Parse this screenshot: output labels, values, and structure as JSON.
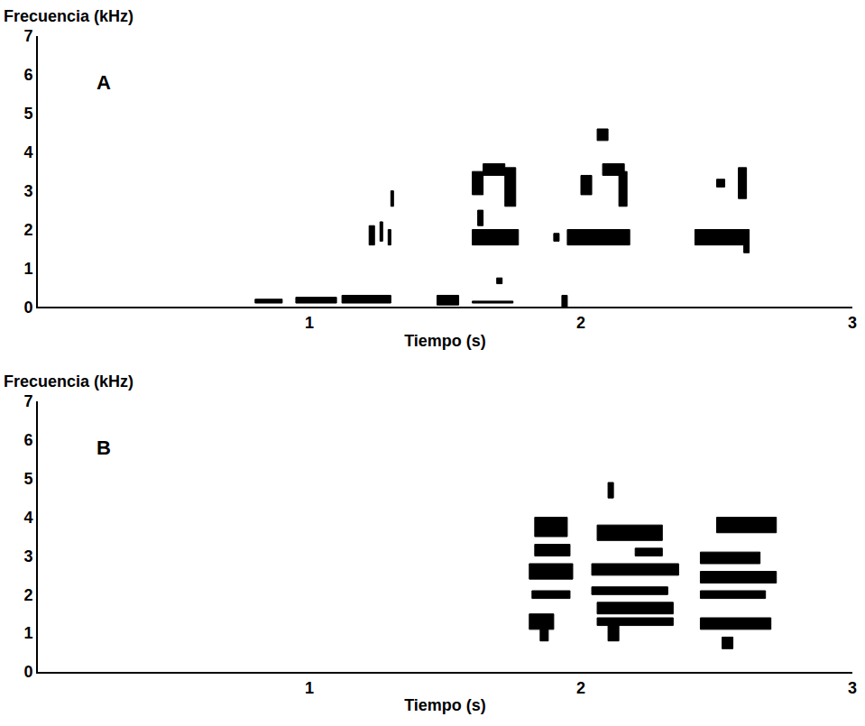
{
  "chart_data": [
    {
      "type": "spectrogram",
      "panel": "A",
      "xlabel": "Tiempo (s)",
      "ylabel": "Frecuencia (kHz)",
      "xlim": [
        0,
        3
      ],
      "xticks": [
        1,
        2,
        3
      ],
      "ylim": [
        0,
        7
      ],
      "yticks": [
        0,
        1,
        2,
        3,
        4,
        5,
        6,
        7
      ],
      "grid": false,
      "color": "#000000",
      "marks": [
        {
          "t": [
            0.8,
            0.9
          ],
          "f": [
            0.1,
            0.2
          ]
        },
        {
          "t": [
            0.95,
            1.1
          ],
          "f": [
            0.1,
            0.25
          ]
        },
        {
          "t": [
            1.12,
            1.3
          ],
          "f": [
            0.1,
            0.3
          ]
        },
        {
          "t": [
            1.47,
            1.55
          ],
          "f": [
            0.05,
            0.3
          ]
        },
        {
          "t": [
            1.6,
            1.75
          ],
          "f": [
            0.1,
            0.15
          ]
        },
        {
          "t": [
            1.93,
            1.95
          ],
          "f": [
            0.0,
            0.3
          ]
        },
        {
          "t": [
            1.22,
            1.24
          ],
          "f": [
            1.6,
            2.1
          ]
        },
        {
          "t": [
            1.26,
            1.27
          ],
          "f": [
            1.7,
            2.2
          ]
        },
        {
          "t": [
            1.29,
            1.3
          ],
          "f": [
            1.6,
            2.0
          ]
        },
        {
          "t": [
            1.3,
            1.31
          ],
          "f": [
            2.6,
            3.0
          ]
        },
        {
          "t": [
            1.69,
            1.71
          ],
          "f": [
            0.6,
            0.75
          ]
        },
        {
          "t": [
            1.6,
            1.77
          ],
          "f": [
            1.6,
            2.0
          ]
        },
        {
          "t": [
            1.6,
            1.64
          ],
          "f": [
            2.9,
            3.5
          ]
        },
        {
          "t": [
            1.64,
            1.72
          ],
          "f": [
            3.4,
            3.7
          ]
        },
        {
          "t": [
            1.72,
            1.76
          ],
          "f": [
            2.6,
            3.6
          ]
        },
        {
          "t": [
            1.62,
            1.64
          ],
          "f": [
            2.1,
            2.5
          ]
        },
        {
          "t": [
            1.9,
            1.92
          ],
          "f": [
            1.7,
            1.9
          ]
        },
        {
          "t": [
            1.95,
            2.18
          ],
          "f": [
            1.6,
            2.0
          ]
        },
        {
          "t": [
            2.0,
            2.04
          ],
          "f": [
            2.9,
            3.4
          ]
        },
        {
          "t": [
            2.08,
            2.16
          ],
          "f": [
            3.4,
            3.7
          ]
        },
        {
          "t": [
            2.14,
            2.17
          ],
          "f": [
            2.6,
            3.5
          ]
        },
        {
          "t": [
            2.06,
            2.1
          ],
          "f": [
            4.3,
            4.6
          ]
        },
        {
          "t": [
            2.42,
            2.62
          ],
          "f": [
            1.6,
            2.0
          ]
        },
        {
          "t": [
            2.58,
            2.61
          ],
          "f": [
            2.8,
            3.6
          ]
        },
        {
          "t": [
            2.5,
            2.53
          ],
          "f": [
            3.1,
            3.3
          ]
        },
        {
          "t": [
            2.6,
            2.62
          ],
          "f": [
            1.4,
            1.6
          ]
        }
      ]
    },
    {
      "type": "spectrogram",
      "panel": "B",
      "xlabel": "Tiempo (s)",
      "ylabel": "Frecuencia (kHz)",
      "xlim": [
        0,
        3
      ],
      "xticks": [
        1,
        2,
        3
      ],
      "ylim": [
        0,
        7
      ],
      "yticks": [
        0,
        1,
        2,
        3,
        4,
        5,
        6,
        7
      ],
      "grid": false,
      "color": "#000000",
      "marks": [
        {
          "t": [
            1.81,
            1.97
          ],
          "f": [
            2.4,
            2.8
          ]
        },
        {
          "t": [
            1.83,
            1.95
          ],
          "f": [
            3.5,
            4.0
          ]
        },
        {
          "t": [
            1.81,
            1.9
          ],
          "f": [
            1.1,
            1.5
          ]
        },
        {
          "t": [
            1.85,
            1.88
          ],
          "f": [
            0.8,
            1.1
          ]
        },
        {
          "t": [
            1.82,
            1.96
          ],
          "f": [
            1.9,
            2.1
          ]
        },
        {
          "t": [
            1.83,
            1.96
          ],
          "f": [
            3.0,
            3.3
          ]
        },
        {
          "t": [
            2.04,
            2.36
          ],
          "f": [
            2.5,
            2.8
          ]
        },
        {
          "t": [
            2.04,
            2.32
          ],
          "f": [
            2.0,
            2.2
          ]
        },
        {
          "t": [
            2.06,
            2.34
          ],
          "f": [
            1.5,
            1.8
          ]
        },
        {
          "t": [
            2.06,
            2.34
          ],
          "f": [
            1.2,
            1.4
          ]
        },
        {
          "t": [
            2.06,
            2.3
          ],
          "f": [
            3.4,
            3.8
          ]
        },
        {
          "t": [
            2.1,
            2.14
          ],
          "f": [
            0.8,
            1.2
          ]
        },
        {
          "t": [
            2.1,
            2.12
          ],
          "f": [
            4.5,
            4.9
          ]
        },
        {
          "t": [
            2.2,
            2.3
          ],
          "f": [
            3.0,
            3.2
          ]
        },
        {
          "t": [
            2.44,
            2.72
          ],
          "f": [
            2.3,
            2.6
          ]
        },
        {
          "t": [
            2.44,
            2.7
          ],
          "f": [
            1.1,
            1.4
          ]
        },
        {
          "t": [
            2.44,
            2.68
          ],
          "f": [
            1.9,
            2.1
          ]
        },
        {
          "t": [
            2.5,
            2.72
          ],
          "f": [
            3.6,
            4.0
          ]
        },
        {
          "t": [
            2.44,
            2.66
          ],
          "f": [
            2.8,
            3.1
          ]
        },
        {
          "t": [
            2.52,
            2.56
          ],
          "f": [
            0.6,
            0.9
          ]
        }
      ]
    }
  ]
}
